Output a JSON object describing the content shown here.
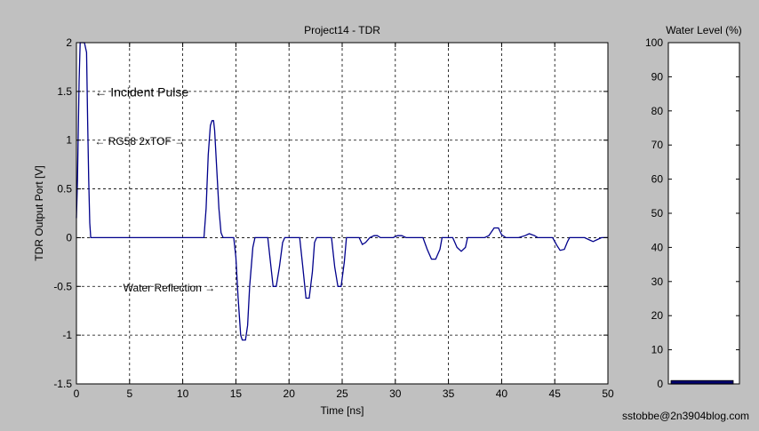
{
  "footer": {
    "credit": "sstobbe@2n3904blog.com"
  },
  "chart_data": [
    {
      "type": "line",
      "title": "Project14 - TDR",
      "xlabel": "Time [ns]",
      "ylabel": "TDR Output Port [V]",
      "xlim": [
        0,
        50
      ],
      "ylim": [
        -1.5,
        2
      ],
      "x_ticks": [
        0,
        5,
        10,
        15,
        20,
        25,
        30,
        35,
        40,
        45,
        50
      ],
      "y_ticks": [
        -1.5,
        -1,
        -0.5,
        0,
        0.5,
        1,
        1.5,
        2
      ],
      "x_tick_labels": [
        "0",
        "5",
        "10",
        "15",
        "20",
        "25",
        "30",
        "35",
        "40",
        "45",
        "50"
      ],
      "y_tick_labels": [
        "-1.5",
        "-1",
        "-0.5",
        "0",
        "0.5",
        "1",
        "1.5",
        "2"
      ],
      "grid": true,
      "line_color": "#00008b",
      "series": [
        {
          "points": [
            [
              0,
              0.2
            ],
            [
              0.1,
              0.6
            ],
            [
              0.25,
              1.6
            ],
            [
              0.35,
              2.0
            ],
            [
              0.55,
              2.0
            ],
            [
              0.75,
              2.0
            ],
            [
              0.95,
              1.9
            ],
            [
              1.05,
              1.2
            ],
            [
              1.15,
              0.6
            ],
            [
              1.25,
              0.15
            ],
            [
              1.35,
              0
            ],
            [
              12.0,
              0
            ],
            [
              12.2,
              0.3
            ],
            [
              12.4,
              0.85
            ],
            [
              12.6,
              1.15
            ],
            [
              12.75,
              1.2
            ],
            [
              12.9,
              1.2
            ],
            [
              13.0,
              1.1
            ],
            [
              13.2,
              0.7
            ],
            [
              13.4,
              0.3
            ],
            [
              13.6,
              0.05
            ],
            [
              13.8,
              0
            ],
            [
              14.8,
              0
            ],
            [
              15.0,
              -0.2
            ],
            [
              15.2,
              -0.6
            ],
            [
              15.45,
              -1.0
            ],
            [
              15.6,
              -1.05
            ],
            [
              15.9,
              -1.05
            ],
            [
              16.1,
              -0.9
            ],
            [
              16.3,
              -0.5
            ],
            [
              16.6,
              -0.1
            ],
            [
              16.8,
              0
            ],
            [
              18.0,
              0
            ],
            [
              18.2,
              -0.2
            ],
            [
              18.5,
              -0.5
            ],
            [
              18.8,
              -0.5
            ],
            [
              19.1,
              -0.3
            ],
            [
              19.4,
              -0.05
            ],
            [
              19.6,
              0
            ],
            [
              21.0,
              0
            ],
            [
              21.3,
              -0.3
            ],
            [
              21.6,
              -0.62
            ],
            [
              21.9,
              -0.62
            ],
            [
              22.2,
              -0.35
            ],
            [
              22.4,
              -0.05
            ],
            [
              22.6,
              0
            ],
            [
              24.0,
              0
            ],
            [
              24.3,
              -0.3
            ],
            [
              24.6,
              -0.5
            ],
            [
              24.9,
              -0.5
            ],
            [
              25.2,
              -0.25
            ],
            [
              25.4,
              0
            ],
            [
              26.6,
              0
            ],
            [
              26.9,
              -0.07
            ],
            [
              27.2,
              -0.05
            ],
            [
              27.6,
              0
            ],
            [
              28.0,
              0.02
            ],
            [
              28.3,
              0.02
            ],
            [
              28.6,
              0
            ],
            [
              29.8,
              0
            ],
            [
              30.2,
              0.02
            ],
            [
              30.6,
              0.02
            ],
            [
              31.0,
              0
            ],
            [
              32.6,
              0
            ],
            [
              33.0,
              -0.12
            ],
            [
              33.4,
              -0.22
            ],
            [
              33.8,
              -0.22
            ],
            [
              34.2,
              -0.12
            ],
            [
              34.4,
              0
            ],
            [
              35.4,
              0
            ],
            [
              35.8,
              -0.1
            ],
            [
              36.2,
              -0.14
            ],
            [
              36.6,
              -0.1
            ],
            [
              36.8,
              0
            ],
            [
              38.4,
              0
            ],
            [
              38.8,
              0.02
            ],
            [
              39.3,
              0.1
            ],
            [
              39.7,
              0.1
            ],
            [
              40.0,
              0.03
            ],
            [
              40.4,
              0
            ],
            [
              41.6,
              0
            ],
            [
              42.2,
              0.02
            ],
            [
              42.6,
              0.04
            ],
            [
              43.1,
              0.02
            ],
            [
              43.4,
              0
            ],
            [
              44.8,
              0
            ],
            [
              45.2,
              -0.08
            ],
            [
              45.5,
              -0.13
            ],
            [
              45.9,
              -0.12
            ],
            [
              46.2,
              -0.04
            ],
            [
              46.4,
              0
            ],
            [
              47.8,
              0
            ],
            [
              48.2,
              -0.02
            ],
            [
              48.6,
              -0.04
            ],
            [
              49.0,
              -0.02
            ],
            [
              49.4,
              0
            ],
            [
              50,
              0
            ]
          ]
        }
      ],
      "annotations": [
        {
          "text": "← Incident Pulse",
          "x": 1.7,
          "y": 1.45,
          "size": "large"
        },
        {
          "text": "← RG58 2xTOF →",
          "x": 1.7,
          "y": 0.95,
          "size": "small"
        },
        {
          "text": "Water Reflection →",
          "x": 4.4,
          "y": -0.55,
          "size": "small"
        }
      ]
    },
    {
      "type": "bar",
      "title": "Water Level (%)",
      "ylim": [
        0,
        100
      ],
      "y_ticks": [
        0,
        10,
        20,
        30,
        40,
        50,
        60,
        70,
        80,
        90,
        100
      ],
      "y_tick_labels": [
        "0",
        "10",
        "20",
        "30",
        "40",
        "50",
        "60",
        "70",
        "80",
        "90",
        "100"
      ],
      "values": [
        1
      ],
      "bar_color": "#00006e",
      "grid": false
    }
  ]
}
